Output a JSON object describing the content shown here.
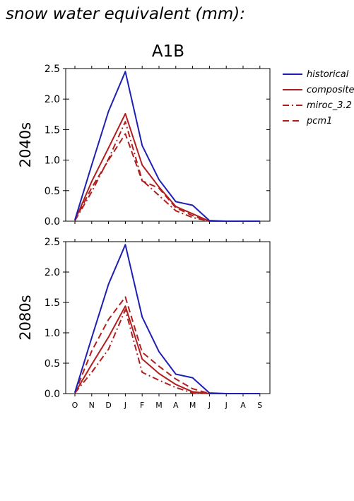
{
  "figure_title": "snow water equivalent (mm):",
  "scenario": "A1B",
  "colors": {
    "historical": "#1f1fb4",
    "future": "#b01f1f"
  },
  "legend": [
    {
      "name": "historical",
      "dash": "solid",
      "color": "#1f1fb4"
    },
    {
      "name": "composite",
      "dash": "solid",
      "color": "#b01f1f"
    },
    {
      "name": "miroc_3.2",
      "dash": "dashdot",
      "color": "#b01f1f"
    },
    {
      "name": "pcm1",
      "dash": "dash",
      "color": "#b01f1f"
    }
  ],
  "chart_data": [
    {
      "type": "line",
      "panel_label": "2040s",
      "categories": [
        "O",
        "N",
        "D",
        "J",
        "F",
        "M",
        "A",
        "M",
        "J",
        "J",
        "A",
        "S"
      ],
      "ylim": [
        0,
        2.5
      ],
      "yticks": [
        "0.0",
        "0.5",
        "1.0",
        "1.5",
        "2.0",
        "2.5"
      ],
      "series": [
        {
          "name": "historical",
          "values": [
            0.02,
            0.92,
            1.8,
            2.45,
            1.24,
            0.68,
            0.32,
            0.26,
            0.01,
            0.0,
            0.0,
            0.0
          ]
        },
        {
          "name": "composite",
          "values": [
            0.01,
            0.65,
            1.2,
            1.76,
            0.92,
            0.56,
            0.24,
            0.12,
            0.0,
            0.0,
            0.0,
            0.0
          ]
        },
        {
          "name": "miroc_3.2",
          "values": [
            0.01,
            0.48,
            1.02,
            1.63,
            0.67,
            0.42,
            0.17,
            0.06,
            0.0,
            0.0,
            0.0,
            0.0
          ]
        },
        {
          "name": "pcm1",
          "values": [
            0.01,
            0.55,
            1.0,
            1.43,
            0.66,
            0.54,
            0.22,
            0.09,
            0.0,
            0.0,
            0.0,
            0.0
          ]
        }
      ]
    },
    {
      "type": "line",
      "panel_label": "2080s",
      "categories": [
        "O",
        "N",
        "D",
        "J",
        "F",
        "M",
        "A",
        "M",
        "J",
        "J",
        "A",
        "S"
      ],
      "ylim": [
        0,
        2.5
      ],
      "yticks": [
        "0.0",
        "0.5",
        "1.0",
        "1.5",
        "2.0",
        "2.5"
      ],
      "series": [
        {
          "name": "historical",
          "values": [
            0.02,
            0.92,
            1.8,
            2.45,
            1.26,
            0.69,
            0.32,
            0.26,
            0.01,
            0.0,
            0.0,
            0.0
          ]
        },
        {
          "name": "composite",
          "values": [
            0.01,
            0.48,
            0.93,
            1.44,
            0.57,
            0.33,
            0.15,
            0.03,
            0.0,
            0.0,
            0.0,
            0.0
          ]
        },
        {
          "name": "miroc_3.2",
          "values": [
            0.01,
            0.35,
            0.73,
            1.38,
            0.35,
            0.22,
            0.1,
            0.01,
            0.0,
            0.0,
            0.0,
            0.0
          ]
        },
        {
          "name": "pcm1",
          "values": [
            0.01,
            0.7,
            1.22,
            1.59,
            0.68,
            0.45,
            0.24,
            0.08,
            0.0,
            0.0,
            0.0,
            0.0
          ]
        }
      ]
    }
  ]
}
